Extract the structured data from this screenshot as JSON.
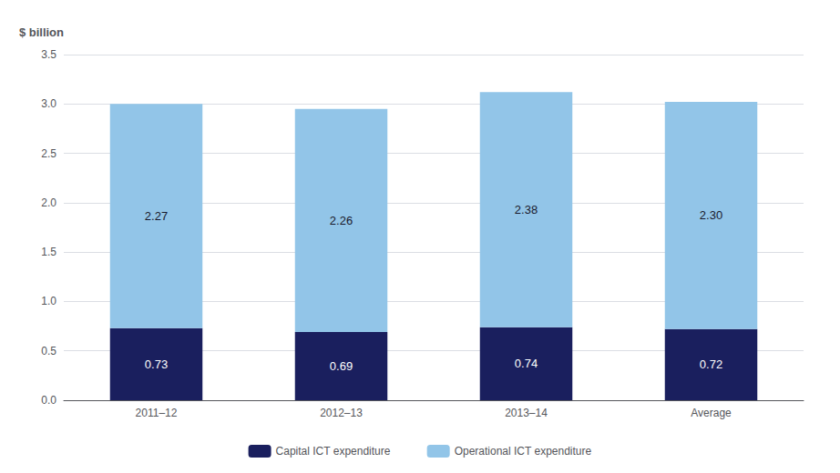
{
  "chart_data": {
    "type": "bar",
    "ylabel": "$ billion",
    "categories": [
      "2011–12",
      "2012–13",
      "2013–14",
      "Average"
    ],
    "series": [
      {
        "name": "Capital ICT expenditure",
        "color": "#1a1f5e",
        "values": [
          0.73,
          0.69,
          0.74,
          0.72
        ],
        "value_labels": [
          "0.73",
          "0.69",
          "0.74",
          "0.72"
        ]
      },
      {
        "name": "Operational ICT expenditure",
        "color": "#92c5e8",
        "values": [
          2.27,
          2.26,
          2.38,
          2.3
        ],
        "value_labels": [
          "2.27",
          "2.26",
          "2.38",
          "2.30"
        ]
      }
    ],
    "ylim": [
      0,
      3.5
    ],
    "yticks": [
      {
        "value": 0,
        "label": "0.0"
      },
      0.5,
      {
        "value": 1,
        "label": "1.0"
      },
      1.5,
      {
        "value": 2,
        "label": "2.0"
      },
      2.5,
      {
        "value": 3,
        "label": "3.0"
      },
      3.5
    ],
    "stacked": true,
    "data_labels": true,
    "grid": true,
    "legend": "bottom"
  }
}
